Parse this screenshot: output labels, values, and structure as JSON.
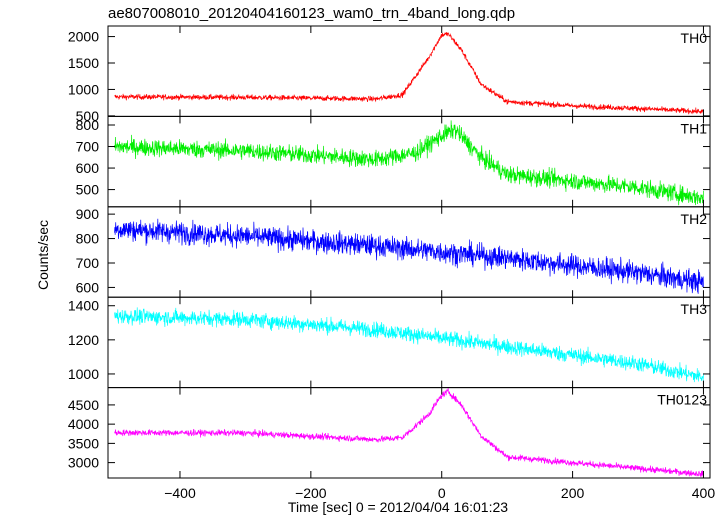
{
  "chart_data": {
    "type": "line",
    "title": "ae807008010_20120404160123_wam0_trn_4band_long.qdp",
    "xlabel": "Time [sec] 0 = 2012/04/04 16:01:23",
    "ylabel": "Counts/sec",
    "xlim": [
      -510,
      410
    ],
    "xticks": [
      -400,
      -200,
      0,
      200,
      400
    ],
    "grid": false,
    "panels": [
      {
        "name": "TH0",
        "color": "#ff0000",
        "ylim": [
          490,
          2200
        ],
        "yticks": [
          500,
          1000,
          1500,
          2000
        ],
        "profile": {
          "x": [
            -500,
            -300,
            -100,
            -60,
            -20,
            0,
            10,
            30,
            60,
            100,
            200,
            300,
            400
          ],
          "y": [
            860,
            850,
            820,
            900,
            1600,
            2030,
            2050,
            1750,
            1100,
            770,
            690,
            640,
            580
          ]
        },
        "noise": 50
      },
      {
        "name": "TH1",
        "color": "#00ee00",
        "ylim": [
          420,
          840
        ],
        "yticks": [
          500,
          600,
          700,
          800
        ],
        "profile": {
          "x": [
            -500,
            -300,
            -100,
            -40,
            0,
            20,
            60,
            100,
            200,
            300,
            400
          ],
          "y": [
            700,
            680,
            640,
            670,
            750,
            780,
            650,
            570,
            540,
            510,
            460
          ]
        },
        "noise": 40
      },
      {
        "name": "TH2",
        "color": "#0000ff",
        "ylim": [
          560,
          930
        ],
        "yticks": [
          600,
          700,
          800,
          900
        ],
        "profile": {
          "x": [
            -500,
            -300,
            -100,
            100,
            300,
            400
          ],
          "y": [
            840,
            810,
            770,
            720,
            660,
            620
          ]
        },
        "noise": 45
      },
      {
        "name": "TH3",
        "color": "#00ffff",
        "ylim": [
          920,
          1450
        ],
        "yticks": [
          1000,
          1200,
          1400
        ],
        "profile": {
          "x": [
            -500,
            -300,
            -100,
            100,
            300,
            400
          ],
          "y": [
            1340,
            1320,
            1260,
            1160,
            1060,
            980
          ]
        },
        "noise": 45
      },
      {
        "name": "TH0123",
        "color": "#ff00ff",
        "ylim": [
          2600,
          4950
        ],
        "yticks": [
          3000,
          3500,
          4000,
          4500
        ],
        "profile": {
          "x": [
            -500,
            -300,
            -100,
            -60,
            -20,
            0,
            10,
            30,
            60,
            100,
            200,
            300,
            400
          ],
          "y": [
            3780,
            3770,
            3600,
            3650,
            4250,
            4750,
            4850,
            4500,
            3700,
            3150,
            3000,
            2850,
            2700
          ]
        },
        "noise": 80
      }
    ]
  }
}
